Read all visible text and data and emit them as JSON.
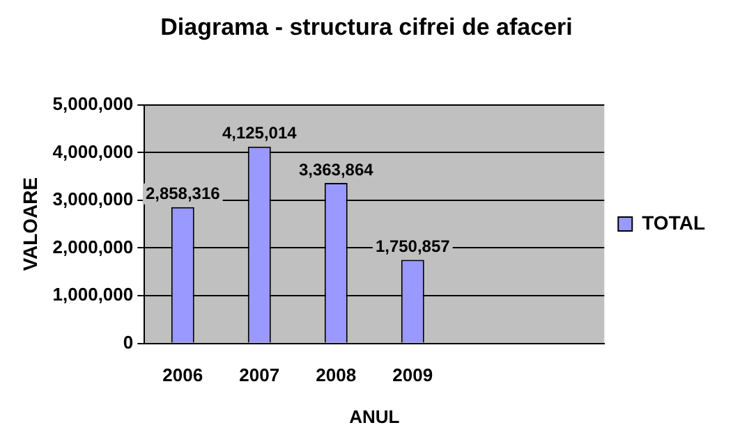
{
  "chart_data": {
    "type": "bar",
    "title": "Diagrama - structura cifrei de afaceri",
    "xlabel": "ANUL",
    "ylabel": "VALOARE",
    "categories": [
      "2006",
      "2007",
      "2008",
      "2009",
      null,
      null
    ],
    "series": [
      {
        "name": "TOTAL",
        "color": "#9999ff",
        "values": [
          2858316,
          4125014,
          3363864,
          1750857,
          null,
          null
        ],
        "value_labels": [
          "2,858,316",
          "4,125,014",
          "3,363,864",
          "1,750,857",
          null,
          null
        ]
      }
    ],
    "ylim": [
      0,
      5000000
    ],
    "yticks": [
      0,
      {
        "value": 1000000,
        "label": "1,000,000"
      },
      {
        "value": 2000000,
        "label": "2,000,000"
      },
      {
        "value": 3000000,
        "label": "3,000,000"
      },
      {
        "value": 4000000,
        "label": "4,000,000"
      },
      {
        "value": 5000000,
        "label": "5,000,000"
      }
    ],
    "grid": "y",
    "legend": "right"
  }
}
